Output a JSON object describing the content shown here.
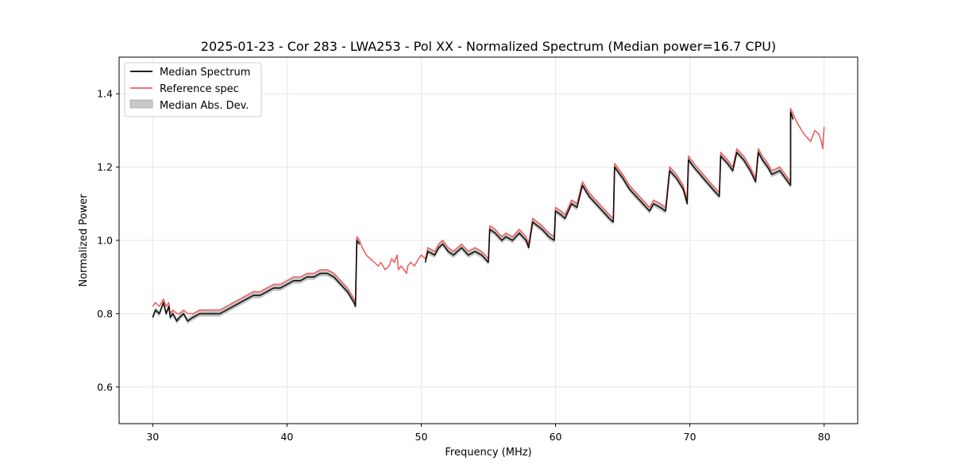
{
  "chart_data": {
    "type": "line",
    "title": "2025-01-23 - Cor 283 - LWA253 - Pol XX - Normalized Spectrum (Median power=16.7 CPU)",
    "xlabel": "Frequency (MHz)",
    "ylabel": "Normalized Power",
    "xlim": [
      27.5,
      82.5
    ],
    "ylim": [
      0.5,
      1.5
    ],
    "xticks": [
      30,
      40,
      50,
      60,
      70,
      80
    ],
    "yticks": [
      0.6,
      0.8,
      1.0,
      1.2,
      1.4
    ],
    "xtick_labels": [
      "30",
      "40",
      "50",
      "60",
      "70",
      "80"
    ],
    "ytick_labels": [
      "0.6",
      "0.8",
      "1.0",
      "1.2",
      "1.4"
    ],
    "grid": true,
    "legend_position": "top-left",
    "colors": {
      "median": "#000000",
      "reference": "#f06060",
      "mad_fill": "#b0b0b0"
    },
    "series": [
      {
        "name": "Median Spectrum",
        "x": [
          30.0,
          30.2,
          30.5,
          30.8,
          31.0,
          31.2,
          31.3,
          31.5,
          31.8,
          32.0,
          32.3,
          32.6,
          33.0,
          33.5,
          34.0,
          34.5,
          35.0,
          35.5,
          36.0,
          36.5,
          37.0,
          37.5,
          38.0,
          38.5,
          39.0,
          39.5,
          40.0,
          40.5,
          41.0,
          41.5,
          42.0,
          42.5,
          43.0,
          43.5,
          44.0,
          44.5,
          45.0,
          45.1,
          45.2,
          45.4
        ],
        "values": [
          0.79,
          0.81,
          0.8,
          0.83,
          0.8,
          0.82,
          0.79,
          0.8,
          0.78,
          0.79,
          0.8,
          0.78,
          0.79,
          0.8,
          0.8,
          0.8,
          0.8,
          0.81,
          0.82,
          0.83,
          0.84,
          0.85,
          0.85,
          0.86,
          0.87,
          0.87,
          0.88,
          0.89,
          0.89,
          0.9,
          0.9,
          0.91,
          0.91,
          0.9,
          0.88,
          0.86,
          0.83,
          0.82,
          1.0,
          0.99
        ]
      },
      {
        "name": "Median Spectrum",
        "x": [
          50.3,
          50.5,
          51.0,
          51.3,
          51.6,
          52.0,
          52.4,
          52.7,
          53.0,
          53.5,
          54.0,
          54.5,
          55.0,
          55.1,
          55.5,
          56.0,
          56.3,
          56.8,
          57.3,
          57.8,
          58.0,
          58.3,
          59.0,
          59.5,
          59.9,
          60.0,
          60.4,
          60.7,
          61.2,
          61.6,
          62.0,
          62.5,
          63.0,
          63.5,
          64.0,
          64.3,
          64.4,
          65.0,
          65.5,
          66.0,
          66.5,
          67.0,
          67.3,
          67.8,
          68.2,
          68.5,
          69.0,
          69.5,
          69.8,
          69.9,
          70.3,
          71.0,
          71.7,
          72.2,
          72.3,
          72.8,
          73.2,
          73.5,
          74.0,
          74.5,
          74.9,
          75.1,
          75.4,
          75.8,
          76.1,
          76.7,
          77.5,
          77.5,
          77.6,
          77.7
        ],
        "values": [
          0.94,
          0.97,
          0.96,
          0.98,
          0.99,
          0.97,
          0.96,
          0.97,
          0.98,
          0.96,
          0.97,
          0.96,
          0.94,
          1.03,
          1.02,
          1.0,
          1.01,
          1.0,
          1.02,
          1.0,
          0.98,
          1.05,
          1.03,
          1.01,
          1.0,
          1.08,
          1.07,
          1.06,
          1.1,
          1.09,
          1.15,
          1.12,
          1.1,
          1.08,
          1.06,
          1.05,
          1.2,
          1.17,
          1.14,
          1.12,
          1.1,
          1.08,
          1.1,
          1.09,
          1.08,
          1.19,
          1.17,
          1.14,
          1.1,
          1.22,
          1.2,
          1.17,
          1.14,
          1.12,
          1.23,
          1.21,
          1.19,
          1.24,
          1.22,
          1.19,
          1.16,
          1.24,
          1.22,
          1.2,
          1.18,
          1.19,
          1.15,
          1.35,
          1.34,
          1.33
        ]
      },
      {
        "name": "Reference spec",
        "x": [
          30.0,
          30.2,
          30.5,
          30.8,
          31.0,
          31.2,
          31.3,
          31.5,
          31.8,
          32.0,
          32.3,
          32.6,
          33.0,
          33.5,
          34.0,
          34.5,
          35.0,
          35.5,
          36.0,
          36.5,
          37.0,
          37.5,
          38.0,
          38.5,
          39.0,
          39.5,
          40.0,
          40.5,
          41.0,
          41.5,
          42.0,
          42.5,
          43.0,
          43.5,
          44.0,
          44.5,
          45.0,
          45.1,
          45.2,
          45.4,
          45.6,
          45.9,
          46.2,
          46.5,
          46.8,
          47.0,
          47.3,
          47.6,
          47.8,
          48.0,
          48.2,
          48.3,
          48.5,
          48.7,
          48.9,
          49.0,
          49.2,
          49.5,
          49.8,
          50.0,
          50.3,
          50.5,
          51.0,
          51.3,
          51.6,
          52.0,
          52.4,
          52.7,
          53.0,
          53.5,
          54.0,
          54.5,
          55.0,
          55.1,
          55.5,
          56.0,
          56.3,
          56.8,
          57.3,
          57.8,
          58.0,
          58.3,
          59.0,
          59.5,
          59.9,
          60.0,
          60.4,
          60.7,
          61.2,
          61.6,
          62.0,
          62.5,
          63.0,
          63.5,
          64.0,
          64.3,
          64.4,
          65.0,
          65.5,
          66.0,
          66.5,
          67.0,
          67.3,
          67.8,
          68.2,
          68.5,
          69.0,
          69.5,
          69.8,
          69.9,
          70.3,
          71.0,
          71.7,
          72.2,
          72.3,
          72.8,
          73.2,
          73.5,
          74.0,
          74.5,
          74.9,
          75.1,
          75.4,
          75.8,
          76.1,
          76.7,
          77.5,
          77.5,
          78.0,
          78.5,
          79.0,
          79.3,
          79.6,
          79.8,
          79.9,
          80.0
        ],
        "values": [
          0.82,
          0.83,
          0.82,
          0.84,
          0.82,
          0.83,
          0.8,
          0.81,
          0.8,
          0.8,
          0.81,
          0.8,
          0.8,
          0.81,
          0.81,
          0.81,
          0.81,
          0.82,
          0.83,
          0.84,
          0.85,
          0.86,
          0.86,
          0.87,
          0.88,
          0.88,
          0.89,
          0.9,
          0.9,
          0.91,
          0.91,
          0.92,
          0.92,
          0.91,
          0.89,
          0.87,
          0.84,
          0.83,
          1.01,
          1.0,
          0.98,
          0.96,
          0.95,
          0.94,
          0.93,
          0.94,
          0.92,
          0.93,
          0.95,
          0.94,
          0.96,
          0.92,
          0.93,
          0.92,
          0.91,
          0.93,
          0.94,
          0.93,
          0.95,
          0.96,
          0.95,
          0.98,
          0.97,
          0.99,
          1.0,
          0.98,
          0.97,
          0.98,
          0.99,
          0.97,
          0.98,
          0.97,
          0.95,
          1.04,
          1.03,
          1.01,
          1.02,
          1.01,
          1.03,
          1.01,
          0.99,
          1.06,
          1.04,
          1.02,
          1.01,
          1.09,
          1.08,
          1.07,
          1.11,
          1.1,
          1.16,
          1.13,
          1.11,
          1.09,
          1.07,
          1.06,
          1.21,
          1.18,
          1.15,
          1.13,
          1.11,
          1.09,
          1.11,
          1.1,
          1.09,
          1.2,
          1.18,
          1.15,
          1.11,
          1.23,
          1.21,
          1.18,
          1.15,
          1.13,
          1.24,
          1.22,
          1.2,
          1.25,
          1.23,
          1.2,
          1.17,
          1.25,
          1.23,
          1.21,
          1.19,
          1.2,
          1.16,
          1.36,
          1.32,
          1.29,
          1.27,
          1.3,
          1.29,
          1.27,
          1.25,
          1.31
        ]
      }
    ],
    "mad_band_width": 0.008,
    "legend": [
      {
        "label": "Median Spectrum",
        "kind": "line",
        "color": "#000000"
      },
      {
        "label": "Reference spec",
        "kind": "line",
        "color": "#f06060"
      },
      {
        "label": "Median Abs. Dev.",
        "kind": "patch",
        "color": "#c8c8c8"
      }
    ]
  }
}
